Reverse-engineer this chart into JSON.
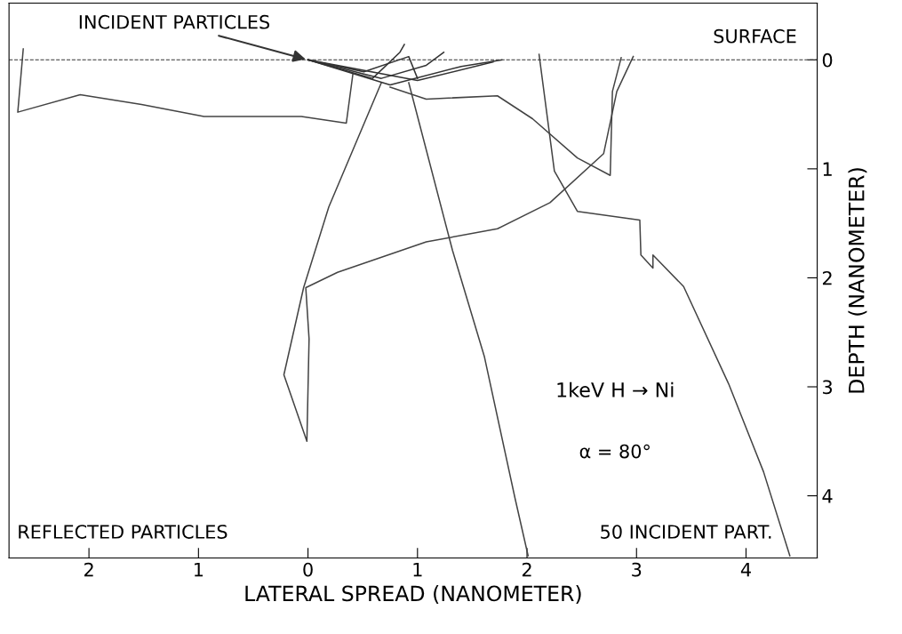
{
  "chart_data": {
    "type": "line",
    "xlabel": "LATERAL SPREAD (NANOMETER)",
    "ylabel": "DEPTH (NANOMETER)",
    "xlim": [
      -2.73,
      4.65
    ],
    "ylim": [
      4.57,
      -0.52
    ],
    "xticks": [
      {
        "value": -2,
        "label": "2"
      },
      {
        "value": -1,
        "label": "1"
      },
      0,
      1,
      2,
      3,
      4
    ],
    "yticks": [
      0,
      1,
      2,
      3,
      4
    ],
    "grid": false,
    "legend": false,
    "marker": "none",
    "line_style": "solid",
    "series": [
      {
        "color": "#444444",
        "x": [
          -2.6,
          -2.65,
          -2.08,
          -1.52,
          -0.95,
          -0.06,
          0.35,
          0.41
        ],
        "values": [
          -0.1,
          0.48,
          0.32,
          0.41,
          0.52,
          0.52,
          0.58,
          0.13
        ]
      },
      {
        "color": "#444444",
        "x": [
          0.67,
          0.19,
          -0.04,
          -0.22,
          -0.01,
          0.01,
          -0.02,
          0.27,
          1.08,
          1.73,
          2.21,
          2.7,
          2.82,
          2.97
        ],
        "values": [
          0.21,
          1.35,
          2.09,
          2.89,
          3.5,
          2.56,
          2.09,
          1.95,
          1.67,
          1.55,
          1.31,
          0.86,
          0.29,
          -0.03
        ]
      },
      {
        "color": "#444444",
        "x": [
          0.92,
          1.32,
          1.61,
          1.89,
          2.01
        ],
        "values": [
          0.21,
          1.75,
          2.72,
          4.02,
          4.55
        ]
      },
      {
        "color": "#444444",
        "x": [
          0.75,
          1.08,
          1.73,
          2.05,
          2.46,
          2.76,
          2.78,
          2.86
        ],
        "values": [
          0.25,
          0.36,
          0.33,
          0.54,
          0.9,
          1.06,
          0.29,
          -0.02
        ]
      },
      {
        "color": "#444444",
        "x": [
          2.11,
          2.25,
          2.46,
          3.03,
          3.04,
          3.15,
          3.15,
          3.43,
          3.84,
          4.16,
          4.4
        ],
        "values": [
          -0.05,
          1.02,
          1.39,
          1.47,
          1.79,
          1.91,
          1.79,
          2.08,
          2.97,
          3.78,
          4.55
        ]
      },
      {
        "color": "#333333",
        "x": [
          0,
          0.75,
          1.4,
          1.77
        ],
        "values": [
          0,
          0.23,
          0.06,
          0
        ]
      },
      {
        "color": "#333333",
        "x": [
          0,
          0.59,
          0.84,
          0.88
        ],
        "values": [
          0,
          0.17,
          -0.07,
          -0.14
        ]
      },
      {
        "color": "#333333",
        "x": [
          0,
          0.67,
          1.08,
          1.24
        ],
        "values": [
          0,
          0.17,
          0.05,
          -0.07
        ]
      },
      {
        "color": "#333333",
        "x": [
          0,
          1.0,
          1.69
        ],
        "values": [
          0,
          0.19,
          0.02
        ]
      },
      {
        "color": "#333333",
        "x": [
          0,
          0.51,
          0.92,
          1.0
        ],
        "values": [
          0,
          0.11,
          -0.03,
          0.17
        ]
      }
    ],
    "ref_lines": [
      {
        "axis": "y",
        "value": 0,
        "label": "SURFACE",
        "line_style": "dashed",
        "color": "#333333"
      }
    ],
    "annotations": [
      {
        "text": "INCIDENT PARTICLES",
        "x": 0,
        "y": 0
      },
      "1keV H → Ni",
      "α = 80°",
      "50 INCIDENT PART.",
      "REFLECTED PARTICLES"
    ]
  }
}
